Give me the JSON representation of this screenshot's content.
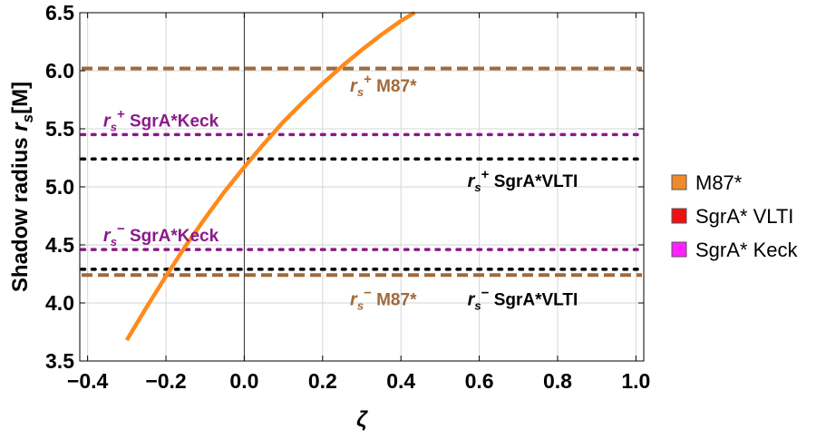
{
  "chart_data": {
    "type": "line",
    "title": "",
    "xlabel": "ζ",
    "ylabel": {
      "main": "Shadow radius ",
      "symbol": "r",
      "sub": "s",
      "unit": "[M]"
    },
    "xlim": [
      -0.42,
      1.02
    ],
    "ylim": [
      3.5,
      6.5
    ],
    "xticks": [
      -0.4,
      -0.2,
      0.0,
      0.2,
      0.4,
      0.6,
      0.8,
      1.0
    ],
    "xtick_labels": [
      "−0.4",
      "−0.2",
      "0.0",
      "0.2",
      "0.4",
      "0.6",
      "0.8",
      "1.0"
    ],
    "yticks": [
      3.5,
      4.0,
      4.5,
      5.0,
      5.5,
      6.0,
      6.5
    ],
    "ytick_labels": [
      "3.5",
      "4.0",
      "4.5",
      "5.0",
      "5.5",
      "6.0",
      "6.5"
    ],
    "grid": true,
    "curve": {
      "name": "M87*",
      "color": "#ff8a1a",
      "x": [
        -0.3,
        -0.25,
        -0.2,
        -0.15,
        -0.1,
        -0.05,
        0.0,
        0.05,
        0.1,
        0.15,
        0.2,
        0.25,
        0.3,
        0.35,
        0.4,
        0.445
      ],
      "y": [
        3.68,
        3.96,
        4.23,
        4.49,
        4.73,
        4.96,
        5.17,
        5.37,
        5.56,
        5.73,
        5.89,
        6.04,
        6.18,
        6.31,
        6.43,
        6.52
      ]
    },
    "hlines": [
      {
        "name": "M87* upper bound",
        "y": 6.02,
        "style": "dashed",
        "color": "#a06a3a"
      },
      {
        "name": "SgrA* Keck upper bound",
        "y": 5.45,
        "style": "dotted",
        "color": "#8a1a8a"
      },
      {
        "name": "SgrA* VLTI upper bound",
        "y": 5.24,
        "style": "dotted",
        "color": "#000000"
      },
      {
        "name": "SgrA* Keck lower bound",
        "y": 4.46,
        "style": "dotted",
        "color": "#8a1a8a"
      },
      {
        "name": "SgrA* VLTI lower bound",
        "y": 4.29,
        "style": "dotted",
        "color": "#000000"
      },
      {
        "name": "M87* lower bound",
        "y": 4.24,
        "style": "dashed",
        "color": "#a06a3a"
      }
    ],
    "annotations": [
      {
        "id": "m87-upper",
        "sym": "r",
        "sub": "s",
        "sup": "+",
        "text": " M87*",
        "x": 0.27,
        "y": 5.82,
        "color": "#a06a3a"
      },
      {
        "id": "keck-upper",
        "sym": "r",
        "sub": "s",
        "sup": "+",
        "text": " SgrA*Keck",
        "x": -0.36,
        "y": 5.52,
        "color": "#8a1a8a"
      },
      {
        "id": "vlti-upper",
        "sym": "r",
        "sub": "s",
        "sup": "+",
        "text": " SgrA*VLTI",
        "x": 0.57,
        "y": 5.0,
        "color": "#000000"
      },
      {
        "id": "keck-lower",
        "sym": "r",
        "sub": "s",
        "sup": "−",
        "text": " SgrA*Keck",
        "x": -0.36,
        "y": 4.53,
        "color": "#8a1a8a"
      },
      {
        "id": "m87-lower",
        "sym": "r",
        "sub": "s",
        "sup": "−",
        "text": " M87*",
        "x": 0.27,
        "y": 3.98,
        "color": "#a06a3a"
      },
      {
        "id": "vlti-lower",
        "sym": "r",
        "sub": "s",
        "sup": "−",
        "text": " SgrA*VLTI",
        "x": 0.57,
        "y": 3.98,
        "color": "#000000"
      }
    ],
    "legend": {
      "position": "right",
      "items": [
        {
          "label": "M87*",
          "color": "#f08a2a"
        },
        {
          "label": "SgrA* VLTI",
          "color": "#ee1111"
        },
        {
          "label": "SgrA* Keck",
          "color": "#ff22ff"
        }
      ]
    }
  }
}
